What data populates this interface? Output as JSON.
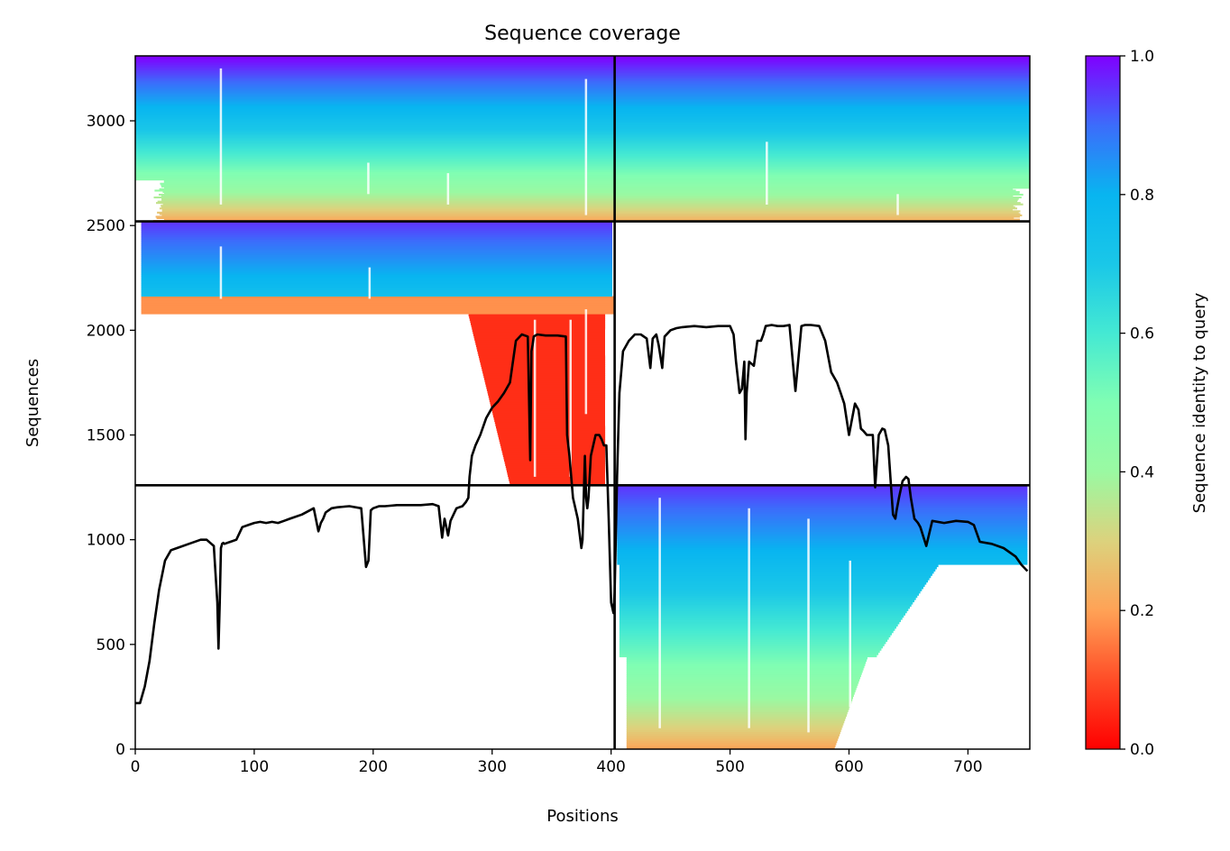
{
  "chart_data": {
    "type": "heatmap",
    "title": "Sequence coverage",
    "xlabel": "Positions",
    "ylabel": "Sequences",
    "xlim": [
      0,
      752
    ],
    "ylim": [
      0,
      3310
    ],
    "x_ticks": [
      0,
      100,
      200,
      300,
      400,
      500,
      600,
      700
    ],
    "y_ticks": [
      0,
      500,
      1000,
      1500,
      2000,
      2500,
      3000
    ],
    "grid": false,
    "colormap": "rainbow",
    "colorbar": {
      "label": "Sequence identity to query",
      "range": [
        0,
        1
      ],
      "ticks": [
        "0.0",
        "0.2",
        "0.4",
        "0.6",
        "0.8",
        "1.0"
      ]
    },
    "block_boundaries": {
      "x": [
        403
      ],
      "y": [
        1260,
        2520
      ]
    },
    "coverage_blocks": [
      {
        "name": "chain-a-pair",
        "x_range": [
          0,
          403
        ],
        "y_range": [
          2520,
          3310
        ],
        "identity_top": 1.0,
        "identity_bottom": 0.2
      },
      {
        "name": "chain-b-pair",
        "x_range": [
          403,
          752
        ],
        "y_range": [
          2520,
          3310
        ],
        "identity_top": 1.0,
        "identity_bottom": 0.22
      },
      {
        "name": "chain-a-single",
        "x_range": [
          0,
          403
        ],
        "y_range": [
          1260,
          2520
        ],
        "identity_top": 0.95,
        "identity_bottom": 0.05
      },
      {
        "name": "chain-b-single",
        "x_range": [
          403,
          752
        ],
        "y_range": [
          0,
          1260
        ],
        "identity_top": 0.95,
        "identity_bottom": 0.2
      }
    ],
    "coverage_line": {
      "name": "coverage",
      "color": "#000000",
      "x": [
        0,
        4,
        8,
        12,
        16,
        20,
        25,
        30,
        35,
        45,
        55,
        60,
        66,
        69,
        70,
        71,
        72,
        73,
        74,
        75,
        80,
        85,
        90,
        95,
        100,
        105,
        110,
        115,
        120,
        125,
        130,
        140,
        150,
        154,
        156,
        158,
        160,
        165,
        170,
        180,
        190,
        194,
        196,
        198,
        200,
        205,
        210,
        220,
        230,
        240,
        250,
        255,
        258,
        260,
        263,
        265,
        270,
        275,
        278,
        280,
        281,
        283,
        286,
        290,
        295,
        300,
        305,
        310,
        315,
        320,
        325,
        330,
        332,
        333,
        334,
        335,
        338,
        345,
        355,
        362,
        363,
        365,
        368,
        372,
        375,
        376,
        378,
        379,
        380,
        381,
        383,
        387,
        390,
        392,
        394,
        396,
        398,
        400,
        402,
        403,
        405,
        407,
        410,
        415,
        420,
        425,
        430,
        433,
        435,
        438,
        440,
        443,
        445,
        450,
        455,
        460,
        470,
        480,
        490,
        497,
        500,
        503,
        505,
        508,
        510,
        512,
        513,
        514,
        516,
        520,
        523,
        526,
        528,
        530,
        535,
        540,
        545,
        550,
        555,
        560,
        563,
        565,
        568,
        575,
        580,
        585,
        590,
        593,
        596,
        600,
        605,
        608,
        610,
        612,
        615,
        618,
        620,
        622,
        625,
        628,
        630,
        633,
        635,
        637,
        639,
        640,
        642,
        645,
        648,
        650,
        652,
        655,
        658,
        660,
        665,
        670,
        680,
        690,
        700,
        705,
        710,
        720,
        730,
        740,
        745,
        750
      ],
      "y": [
        220,
        220,
        300,
        420,
        600,
        760,
        900,
        950,
        960,
        980,
        1000,
        1000,
        970,
        700,
        480,
        700,
        960,
        980,
        985,
        980,
        990,
        1000,
        1060,
        1070,
        1080,
        1085,
        1080,
        1085,
        1080,
        1090,
        1100,
        1120,
        1150,
        1040,
        1080,
        1100,
        1130,
        1150,
        1155,
        1160,
        1150,
        870,
        900,
        1140,
        1150,
        1160,
        1160,
        1165,
        1165,
        1165,
        1170,
        1160,
        1010,
        1100,
        1020,
        1090,
        1150,
        1160,
        1180,
        1200,
        1300,
        1400,
        1450,
        1500,
        1580,
        1630,
        1660,
        1700,
        1750,
        1950,
        1980,
        1970,
        1380,
        1900,
        1930,
        1970,
        1980,
        1975,
        1975,
        1970,
        1500,
        1400,
        1200,
        1100,
        960,
        1000,
        1400,
        1200,
        1150,
        1200,
        1400,
        1500,
        1500,
        1480,
        1450,
        1450,
        1100,
        700,
        650,
        750,
        1300,
        1700,
        1900,
        1950,
        1980,
        1980,
        1960,
        1820,
        1960,
        1980,
        1930,
        1820,
        1970,
        2000,
        2010,
        2015,
        2020,
        2015,
        2020,
        2020,
        2020,
        1980,
        1850,
        1700,
        1720,
        1850,
        1480,
        1700,
        1850,
        1830,
        1950,
        1950,
        1980,
        2020,
        2025,
        2020,
        2020,
        2025,
        1710,
        2020,
        2025,
        2025,
        2025,
        2020,
        1950,
        1800,
        1750,
        1700,
        1650,
        1500,
        1650,
        1620,
        1530,
        1520,
        1500,
        1500,
        1500,
        1250,
        1500,
        1530,
        1525,
        1450,
        1280,
        1120,
        1100,
        1140,
        1200,
        1280,
        1300,
        1290,
        1200,
        1100,
        1080,
        1060,
        970,
        1090,
        1080,
        1090,
        1085,
        1070,
        990,
        980,
        960,
        920,
        880,
        850
      ]
    }
  }
}
